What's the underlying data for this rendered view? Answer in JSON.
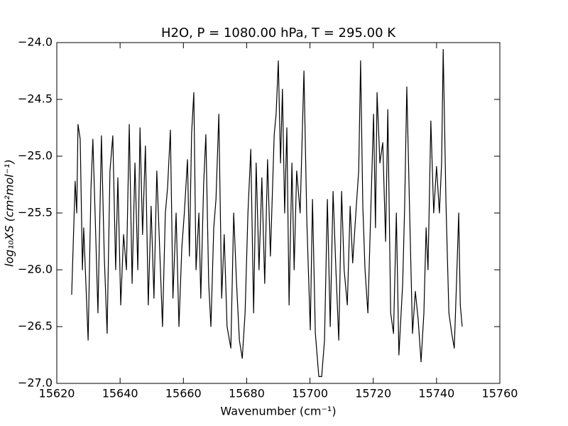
{
  "chart_data": {
    "type": "line",
    "title": "H2O, P = 1080.00 hPa, T = 295.00 K",
    "x_label": "Wavenumber (cm⁻¹)",
    "y_label": "log₁₀XS (cm²mol⁻¹)",
    "x": [
      15624.7,
      15625.8,
      15626.3,
      15626.7,
      15627.4,
      15628.1,
      15628.5,
      15629.9,
      15630.8,
      15631.4,
      15632.1,
      15633.0,
      15634.1,
      15635.0,
      15635.9,
      15636.8,
      15637.7,
      15638.6,
      15639.3,
      15640.2,
      15641.1,
      15642.0,
      15642.9,
      15643.8,
      15644.7,
      15645.6,
      15646.3,
      15647.1,
      15648.0,
      15648.9,
      15649.8,
      15650.7,
      15651.6,
      15652.5,
      15653.4,
      15654.3,
      15655.0,
      15655.9,
      15656.7,
      15657.7,
      15658.6,
      15659.5,
      15660.3,
      15661.3,
      15661.9,
      15662.6,
      15663.3,
      15664.0,
      15664.9,
      15665.5,
      15666.4,
      15667.1,
      15668.0,
      15668.7,
      15669.6,
      15670.3,
      15671.2,
      15672.1,
      15672.9,
      15673.8,
      15675.0,
      15675.9,
      15676.8,
      15677.7,
      15678.6,
      15679.5,
      15680.4,
      15681.3,
      15682.2,
      15683.0,
      15683.9,
      15684.8,
      15685.7,
      15686.6,
      15687.5,
      15688.7,
      15689.3,
      15690.0,
      15690.7,
      15691.3,
      15692.0,
      15692.7,
      15693.4,
      15694.3,
      15695.0,
      15695.8,
      15696.9,
      15698.1,
      15699.0,
      15700.1,
      15700.8,
      15701.7,
      15702.8,
      15703.7,
      15704.6,
      15705.5,
      15706.4,
      15707.3,
      15708.2,
      15709.1,
      15710.0,
      15710.8,
      15711.8,
      15712.7,
      15713.5,
      15714.5,
      15715.4,
      15716.0,
      15716.7,
      15717.4,
      15718.3,
      15719.2,
      15720.1,
      15720.7,
      15721.2,
      15722.1,
      15723.0,
      15723.9,
      15724.6,
      15725.5,
      15726.4,
      15727.3,
      15728.1,
      15729.3,
      15729.9,
      15730.6,
      15731.5,
      15732.4,
      15733.3,
      15734.2,
      15735.1,
      15736.0,
      15736.7,
      15737.3,
      15738.2,
      15739.1,
      15740.0,
      15740.9,
      15741.6,
      15742.1,
      15743.0,
      15743.9,
      15744.8,
      15745.6,
      15746.3,
      15747.0,
      15747.5,
      15748.1
    ],
    "series": [
      {
        "color": "#000000",
        "values": [
          -26.22,
          -25.22,
          -25.5,
          -24.72,
          -24.85,
          -26.0,
          -25.63,
          -26.62,
          -25.28,
          -24.85,
          -25.5,
          -26.38,
          -24.82,
          -25.88,
          -26.56,
          -25.13,
          -24.82,
          -26.0,
          -25.19,
          -26.31,
          -25.69,
          -26.0,
          -24.72,
          -26.12,
          -25.06,
          -26.0,
          -24.75,
          -25.69,
          -24.91,
          -26.31,
          -25.44,
          -26.25,
          -25.13,
          -25.81,
          -26.5,
          -25.5,
          -25.28,
          -24.77,
          -26.25,
          -25.5,
          -26.5,
          -25.81,
          -25.5,
          -25.03,
          -25.88,
          -24.8,
          -24.44,
          -26.0,
          -25.5,
          -26.25,
          -25.25,
          -24.81,
          -26.12,
          -26.5,
          -25.63,
          -25.38,
          -24.63,
          -26.25,
          -25.69,
          -26.5,
          -26.69,
          -25.5,
          -26.12,
          -26.62,
          -26.78,
          -26.38,
          -25.5,
          -24.94,
          -26.38,
          -25.06,
          -26.0,
          -25.19,
          -26.12,
          -25.03,
          -25.88,
          -24.81,
          -24.63,
          -24.16,
          -25.06,
          -24.41,
          -25.5,
          -24.75,
          -26.31,
          -25.06,
          -26.0,
          -25.13,
          -25.5,
          -24.25,
          -25.56,
          -26.53,
          -25.38,
          -26.56,
          -26.94,
          -26.94,
          -26.62,
          -25.38,
          -26.5,
          -25.31,
          -26.0,
          -26.62,
          -25.31,
          -26.0,
          -26.31,
          -25.44,
          -25.94,
          -25.5,
          -25.13,
          -24.16,
          -25.44,
          -26.0,
          -26.38,
          -25.5,
          -24.63,
          -25.63,
          -24.44,
          -25.06,
          -24.88,
          -25.75,
          -24.59,
          -26.38,
          -26.56,
          -25.5,
          -26.75,
          -26.12,
          -25.47,
          -24.39,
          -25.5,
          -26.56,
          -26.19,
          -26.44,
          -26.81,
          -26.38,
          -25.63,
          -26.0,
          -24.69,
          -25.5,
          -25.09,
          -25.5,
          -25.06,
          -24.06,
          -25.44,
          -26.38,
          -26.56,
          -26.69,
          -26.12,
          -25.5,
          -26.31,
          -26.5
        ]
      }
    ],
    "xlim": [
      15620,
      15760
    ],
    "xticks": [
      15620,
      15640,
      15660,
      15680,
      15700,
      15720,
      15740,
      15760
    ],
    "ylim": [
      -27,
      -24
    ],
    "yticks": [
      {
        "value": -27,
        "label": "−27.0"
      },
      {
        "value": -26.5,
        "label": "−26.5"
      },
      {
        "value": -26,
        "label": "−26.0"
      },
      {
        "value": -25.5,
        "label": "−25.5"
      },
      {
        "value": -25,
        "label": "−25.0"
      },
      {
        "value": -24.5,
        "label": "−24.5"
      },
      {
        "value": -24,
        "label": "−24.0"
      }
    ]
  }
}
